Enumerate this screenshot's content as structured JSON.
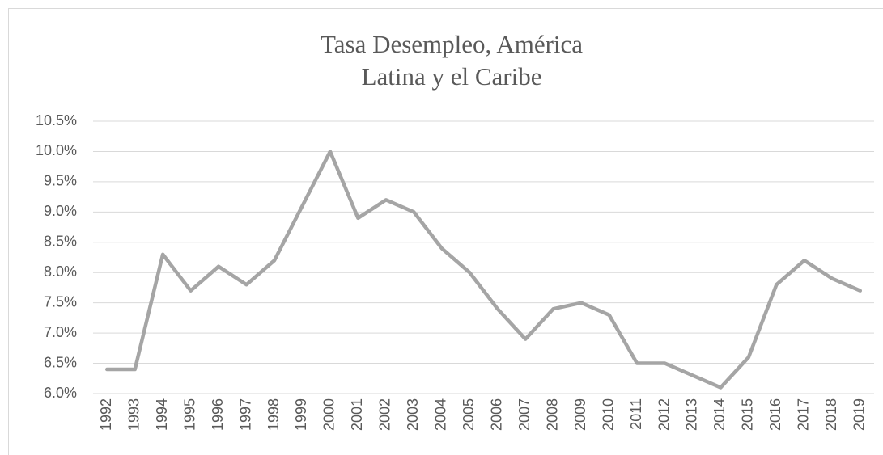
{
  "chart_data": {
    "type": "line",
    "title": [
      "Tasa Desempleo, América",
      "Latina  y el Caribe"
    ],
    "categories": [
      "1992",
      "1993",
      "1994",
      "1995",
      "1996",
      "1997",
      "1998",
      "1999",
      "2000",
      "2001",
      "2002",
      "2003",
      "2004",
      "2005",
      "2006",
      "2007",
      "2008",
      "2009",
      "2010",
      "2011",
      "2012",
      "2013",
      "2014",
      "2015",
      "2016",
      "2017",
      "2018",
      "2019"
    ],
    "values": [
      6.4,
      6.4,
      8.3,
      7.7,
      8.1,
      7.8,
      8.2,
      9.1,
      10.0,
      8.9,
      9.2,
      9.0,
      8.4,
      8.0,
      7.4,
      6.9,
      7.4,
      7.5,
      7.3,
      6.5,
      6.5,
      6.3,
      6.1,
      6.6,
      7.8,
      8.2,
      7.9,
      7.7
    ],
    "color": "#a5a5a5",
    "ylim": [
      6,
      10.5
    ],
    "yticks": [
      {
        "value": 6,
        "label": "6.0%"
      },
      {
        "value": 6.5,
        "label": "6.5%"
      },
      {
        "value": 7,
        "label": "7.0%"
      },
      {
        "value": 7.5,
        "label": "7.5%"
      },
      {
        "value": 8,
        "label": "8.0%"
      },
      {
        "value": 8.5,
        "label": "8.5%"
      },
      {
        "value": 9,
        "label": "9.0%"
      },
      {
        "value": 9.5,
        "label": "9.5%"
      },
      {
        "value": 10,
        "label": "10.0%"
      },
      {
        "value": 10.5,
        "label": "10.5%"
      }
    ],
    "grid": true
  }
}
